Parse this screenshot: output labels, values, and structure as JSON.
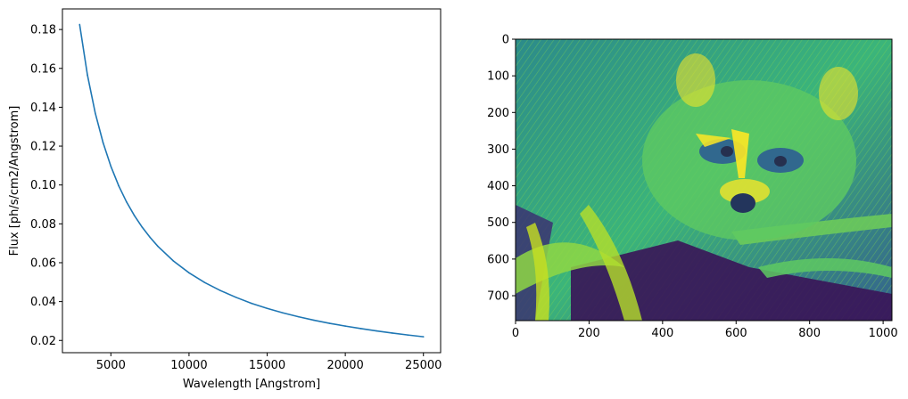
{
  "chart_data": [
    {
      "type": "line",
      "title": "",
      "xlabel": "Wavelength [Angstrom]",
      "ylabel": "Flux [ph/s/cm2/Angstrom]",
      "xlim": [
        1900,
        26100
      ],
      "ylim": [
        0.0137,
        0.1906
      ],
      "xticks": [
        5000,
        10000,
        15000,
        20000,
        25000
      ],
      "xtick_labels": [
        "5000",
        "10000",
        "15000",
        "20000",
        "25000"
      ],
      "yticks": [
        0.02,
        0.04,
        0.06,
        0.08,
        0.1,
        0.12,
        0.14,
        0.16,
        0.18
      ],
      "ytick_labels": [
        "0.02",
        "0.04",
        "0.06",
        "0.08",
        "0.10",
        "0.12",
        "0.14",
        "0.16",
        "0.18"
      ],
      "grid": false,
      "series": [
        {
          "color": "#1f77b4",
          "x": [
            3000,
            3500,
            4000,
            4500,
            5000,
            5500,
            6000,
            6500,
            7000,
            7500,
            8000,
            9000,
            10000,
            11000,
            12000,
            13000,
            14000,
            15000,
            16000,
            17000,
            18000,
            19000,
            20000,
            21000,
            22000,
            23000,
            24000,
            25000
          ],
          "y": [
            0.1826,
            0.1566,
            0.137,
            0.1218,
            0.1096,
            0.0996,
            0.0913,
            0.0843,
            0.0783,
            0.0731,
            0.0685,
            0.0609,
            0.0548,
            0.0498,
            0.0457,
            0.0422,
            0.0391,
            0.0365,
            0.0342,
            0.0322,
            0.0304,
            0.0288,
            0.0274,
            0.0261,
            0.0249,
            0.0238,
            0.0228,
            0.0219
          ]
        }
      ]
    },
    {
      "type": "heatmap",
      "title": "",
      "xlabel": "",
      "ylabel": "",
      "xlim": [
        0,
        1024
      ],
      "ylim": [
        768,
        0
      ],
      "xticks": [
        0,
        200,
        400,
        600,
        800,
        1000
      ],
      "xtick_labels": [
        "0",
        "200",
        "400",
        "600",
        "800",
        "1000"
      ],
      "yticks": [
        0,
        100,
        200,
        300,
        400,
        500,
        600,
        700
      ],
      "ytick_labels": [
        "0",
        "100",
        "200",
        "300",
        "400",
        "500",
        "600",
        "700"
      ],
      "colormap": "viridis",
      "image_content": "raccoon-face-among-palm-leaves"
    }
  ]
}
